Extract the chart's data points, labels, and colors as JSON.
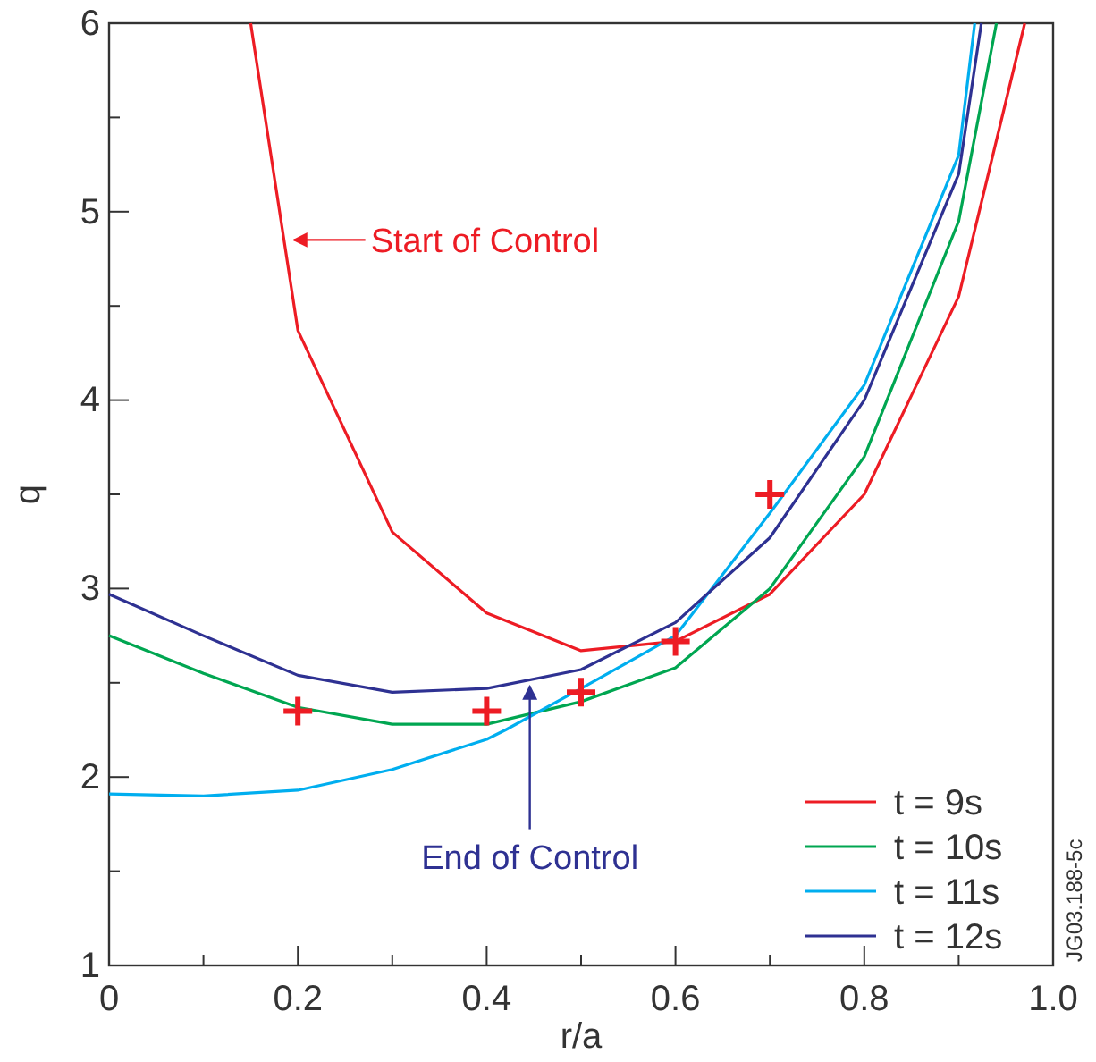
{
  "chart_data": {
    "type": "line",
    "xlabel": "r/a",
    "ylabel": "q",
    "xlim": [
      0,
      1
    ],
    "ylim": [
      1,
      6
    ],
    "xticks": [
      0,
      {
        "value": 0.1,
        "label": null
      },
      0.2,
      {
        "value": 0.3,
        "label": null
      },
      0.4,
      {
        "value": 0.5,
        "label": null
      },
      0.6,
      {
        "value": 0.7,
        "label": null
      },
      0.8,
      {
        "value": 0.9,
        "label": null
      },
      {
        "value": 1,
        "label": "1.0"
      }
    ],
    "yticks": [
      1,
      {
        "value": 1.5,
        "label": null
      },
      2,
      {
        "value": 2.5,
        "label": null
      },
      3,
      {
        "value": 3.5,
        "label": null
      },
      4,
      {
        "value": 4.5,
        "label": null
      },
      5,
      {
        "value": 5.5,
        "label": null
      },
      6
    ],
    "grid": false,
    "legend": "bottom right",
    "line_style": "solid",
    "series": [
      {
        "name": "t = 9s",
        "color": "#ed1c24",
        "x": [
          0.15,
          0.2,
          0.3,
          0.4,
          0.5,
          0.6,
          0.7,
          0.8,
          0.9,
          0.97
        ],
        "values": [
          6,
          4.37,
          3.3,
          2.87,
          2.67,
          2.72,
          2.97,
          3.5,
          4.55,
          6
        ]
      },
      {
        "name": "t = 10s",
        "color": "#00a651",
        "x": [
          0,
          0.1,
          0.2,
          0.3,
          0.4,
          0.5,
          0.6,
          0.7,
          0.8,
          0.9,
          0.94
        ],
        "values": [
          2.75,
          2.55,
          2.37,
          2.28,
          2.28,
          2.4,
          2.58,
          3.0,
          3.7,
          4.95,
          6
        ]
      },
      {
        "name": "t = 11s",
        "color": "#00aeef",
        "x": [
          0,
          0.1,
          0.2,
          0.3,
          0.4,
          0.42,
          0.5,
          0.6,
          0.7,
          0.8,
          0.9,
          0.917
        ],
        "values": [
          1.91,
          1.9,
          1.93,
          2.04,
          2.2,
          2.25,
          2.47,
          2.75,
          3.4,
          4.08,
          5.3,
          6
        ]
      },
      {
        "name": "t = 12s",
        "color": "#2e3192",
        "x": [
          0,
          0.1,
          0.2,
          0.3,
          0.4,
          0.5,
          0.6,
          0.7,
          0.8,
          0.9,
          0.924
        ],
        "values": [
          2.97,
          2.75,
          2.54,
          2.45,
          2.47,
          2.57,
          2.82,
          3.27,
          4.0,
          5.2,
          6
        ]
      },
      {
        "type": "scatter",
        "marker": "cross",
        "color": "#ed1c24",
        "x": [
          0.2,
          0.4,
          0.5,
          0.6,
          0.7
        ],
        "values": [
          2.35,
          2.35,
          2.45,
          2.72,
          3.5
        ]
      }
    ],
    "annotations": [
      {
        "text": "Start of Control",
        "x": 0.19,
        "y": 4.85
      },
      {
        "text": "End of Control",
        "x": 0.44,
        "y": 2.52
      },
      "JG03.188-5c"
    ]
  }
}
